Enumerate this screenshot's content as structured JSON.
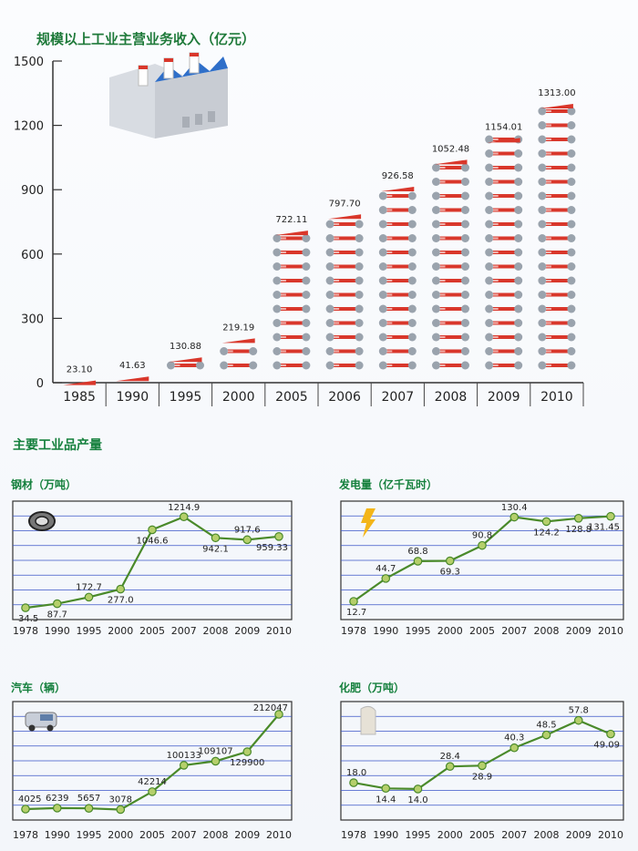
{
  "header": {
    "main_title": "规模以上工业主营业务收入（亿元）",
    "products_title": "主要工业品产量"
  },
  "chart_data": [
    {
      "type": "bar",
      "title": "规模以上工业主营业务收入（亿元）",
      "categories": [
        "1985",
        "1990",
        "1995",
        "2000",
        "2005",
        "2006",
        "2007",
        "2008",
        "2009",
        "2010"
      ],
      "values": [
        23.1,
        41.63,
        130.88,
        219.19,
        722.11,
        797.7,
        926.58,
        1052.48,
        1154.01,
        1313.0
      ],
      "value_labels": [
        "23.10",
        "41.63",
        "130.88",
        "219.19",
        "722.11",
        "797.70",
        "926.58",
        "1052.48",
        "1154.01",
        "1313.00"
      ],
      "yticks": [
        "0",
        "300",
        "600",
        "900",
        "1200",
        "1500"
      ],
      "ylim": [
        0,
        1500
      ],
      "colors": {
        "bar": "#d9372b",
        "tool": "#9aa3ad",
        "axis": "#333333"
      }
    },
    {
      "type": "line",
      "title": "钢材（万吨）",
      "icon": "steel-coil-icon",
      "x": [
        "1978",
        "1990",
        "1995",
        "2000",
        "2005",
        "2007",
        "2008",
        "2009",
        "2010"
      ],
      "values": [
        34.5,
        87.7,
        172.7,
        277.0,
        1046.6,
        1214.9,
        942.1,
        917.6,
        959.33
      ],
      "value_labels": [
        "34.5",
        "87.7",
        "172.7",
        "277.0",
        "1046.6",
        "1214.9",
        "942.1",
        "917.6",
        "959.33"
      ],
      "ylim": [
        0,
        1300
      ]
    },
    {
      "type": "line",
      "title": "发电量（亿千瓦时）",
      "icon": "lightning-icon",
      "x": [
        "1978",
        "1990",
        "1995",
        "2000",
        "2005",
        "2007",
        "2008",
        "2009",
        "2010"
      ],
      "values": [
        12.7,
        44.7,
        68.8,
        69.3,
        90.8,
        130.4,
        124.2,
        128.8,
        131.45
      ],
      "value_labels": [
        "12.7",
        "44.7",
        "68.8",
        "69.3",
        "90.8",
        "130.4",
        "124.2",
        "128.8",
        "131.45"
      ],
      "ylim": [
        0,
        140
      ]
    },
    {
      "type": "line",
      "title": "汽车（辆）",
      "icon": "car-icon",
      "x": [
        "1978",
        "1990",
        "1995",
        "2000",
        "2005",
        "2007",
        "2008",
        "2009",
        "2010"
      ],
      "values": [
        4025,
        6239,
        5657,
        3078,
        42214,
        100133,
        109107,
        129900,
        212047
      ],
      "value_labels": [
        "4025",
        "6239",
        "5657",
        "3078",
        "42214",
        "100133",
        "109107",
        "129900",
        "212047"
      ],
      "ylim": [
        0,
        220000
      ]
    },
    {
      "type": "line",
      "title": "化肥（万吨）",
      "icon": "fertilizer-bag-icon",
      "x": [
        "1978",
        "1990",
        "1995",
        "2000",
        "2005",
        "2007",
        "2008",
        "2009",
        "2010"
      ],
      "values": [
        18.0,
        14.4,
        14.0,
        28.4,
        28.9,
        40.3,
        48.5,
        57.8,
        49.09
      ],
      "value_labels": [
        "18.0",
        "14.4",
        "14.0",
        "28.4",
        "28.9",
        "40.3",
        "48.5",
        "57.8",
        "49.09"
      ],
      "ylim": [
        0,
        64
      ]
    }
  ]
}
